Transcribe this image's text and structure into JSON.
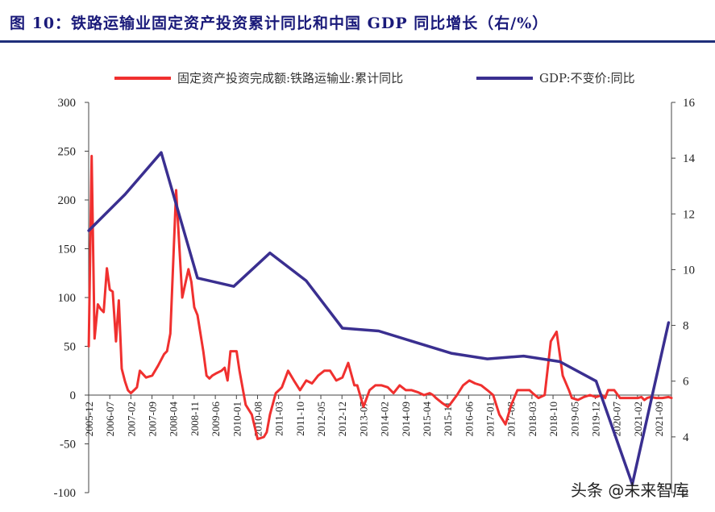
{
  "title": "图 10：铁路运输业固定资产投资累计同比和中国 GDP 同比增长（右/%）",
  "watermark": "头条 @未来智库",
  "chart_data": {
    "type": "line",
    "title": "图 10：铁路运输业固定资产投资累计同比和中国 GDP 同比增长（右/%）",
    "left_axis": {
      "ylim": [
        -100,
        300
      ],
      "ticks": [
        "300",
        "250",
        "200",
        "150",
        "100",
        "50",
        "0",
        "-50",
        "-100"
      ],
      "tick_values": [
        300,
        250,
        200,
        150,
        100,
        50,
        0,
        -50,
        -100
      ]
    },
    "right_axis": {
      "ylim": [
        2,
        16
      ],
      "ticks": [
        "16",
        "14",
        "12",
        "10",
        "8",
        "6",
        "4",
        "2"
      ],
      "tick_values": [
        16,
        14,
        12,
        10,
        8,
        6,
        4,
        2
      ]
    },
    "x_range": [
      2005.917,
      2022.0
    ],
    "x_ticks": [
      "2005-12",
      "2006-07",
      "2007-02",
      "2007-09",
      "2008-04",
      "2008-11",
      "2009-06",
      "2010-01",
      "2010-08",
      "2011-03",
      "2011-10",
      "2012-05",
      "2012-12",
      "2013-07",
      "2014-02",
      "2014-09",
      "2015-04",
      "2015-11",
      "2016-06",
      "2017-01",
      "2017-08",
      "2018-03",
      "2018-10",
      "2019-05",
      "2019-12",
      "2020-07",
      "2021-02",
      "2021-09"
    ],
    "series": [
      {
        "name": "固定资产投资完成额:铁路运输业:累计同比",
        "axis": "left",
        "color": "#f0302f",
        "x": [
          2005.92,
          2006.0,
          2006.08,
          2006.17,
          2006.25,
          2006.33,
          2006.42,
          2006.5,
          2006.58,
          2006.67,
          2006.75,
          2006.83,
          2006.92,
          2007.0,
          2007.08,
          2007.17,
          2007.25,
          2007.33,
          2007.5,
          2007.67,
          2007.83,
          2008.0,
          2008.08,
          2008.17,
          2008.33,
          2008.5,
          2008.67,
          2008.75,
          2008.83,
          2008.92,
          2009.08,
          2009.17,
          2009.25,
          2009.33,
          2009.42,
          2009.58,
          2009.67,
          2009.75,
          2009.83,
          2010.0,
          2010.08,
          2010.25,
          2010.42,
          2010.58,
          2010.75,
          2010.83,
          2010.92,
          2011.08,
          2011.17,
          2011.25,
          2011.42,
          2011.58,
          2011.75,
          2011.92,
          2012.08,
          2012.25,
          2012.42,
          2012.58,
          2012.75,
          2012.92,
          2013.08,
          2013.25,
          2013.33,
          2013.5,
          2013.67,
          2013.83,
          2014.0,
          2014.17,
          2014.33,
          2014.5,
          2014.67,
          2014.83,
          2015.0,
          2015.17,
          2015.33,
          2015.42,
          2015.5,
          2015.67,
          2015.83,
          2015.92,
          2016.08,
          2016.25,
          2016.42,
          2016.58,
          2016.75,
          2016.92,
          2017.08,
          2017.25,
          2017.42,
          2017.58,
          2017.75,
          2017.92,
          2018.08,
          2018.17,
          2018.33,
          2018.5,
          2018.67,
          2018.83,
          2019.0,
          2019.17,
          2019.25,
          2019.42,
          2019.58,
          2019.75,
          2019.92,
          2020.08,
          2020.17,
          2020.25,
          2020.42,
          2020.58,
          2020.75,
          2020.92,
          2021.08,
          2021.17,
          2021.25,
          2021.33,
          2021.42,
          2021.58,
          2021.75,
          2021.92,
          2022.0
        ],
        "values": [
          50,
          245,
          58,
          93,
          88,
          85,
          130,
          108,
          106,
          55,
          97,
          27,
          14,
          5,
          2,
          5,
          8,
          25,
          18,
          20,
          30,
          42,
          45,
          63,
          210,
          100,
          129,
          116,
          90,
          82,
          45,
          20,
          17,
          20,
          22,
          25,
          28,
          15,
          45,
          45,
          25,
          -10,
          -20,
          -45,
          -43,
          -38,
          -20,
          2,
          5,
          8,
          25,
          15,
          5,
          15,
          12,
          20,
          25,
          25,
          15,
          18,
          33,
          10,
          10,
          -12,
          5,
          10,
          10,
          8,
          2,
          10,
          5,
          5,
          3,
          0,
          2,
          0,
          -3,
          -8,
          -12,
          -8,
          0,
          10,
          15,
          12,
          10,
          5,
          0,
          -20,
          -30,
          -10,
          5,
          5,
          5,
          2,
          -3,
          0,
          55,
          65,
          20,
          5,
          -3,
          -5,
          -2,
          0,
          -2,
          0,
          -3,
          5,
          5,
          -3,
          -3,
          -3,
          -3,
          -2,
          -5,
          -3,
          -2,
          -3,
          -3,
          -2,
          -3
        ],
        "x_stride_note": "approximate readings"
      },
      {
        "name": "GDP:不变价:同比",
        "axis": "right",
        "color": "#3a2f90",
        "x": [
          2005.92,
          2006.92,
          2007.92,
          2008.92,
          2009.92,
          2010.92,
          2011.92,
          2012.92,
          2013.92,
          2014.92,
          2015.92,
          2016.92,
          2017.92,
          2018.92,
          2019.92,
          2020.92,
          2021.92
        ],
        "values": [
          11.4,
          12.7,
          14.2,
          9.7,
          9.4,
          10.6,
          9.6,
          7.9,
          7.8,
          7.4,
          7.0,
          6.8,
          6.9,
          6.7,
          6.0,
          2.3,
          8.1
        ]
      }
    ]
  }
}
